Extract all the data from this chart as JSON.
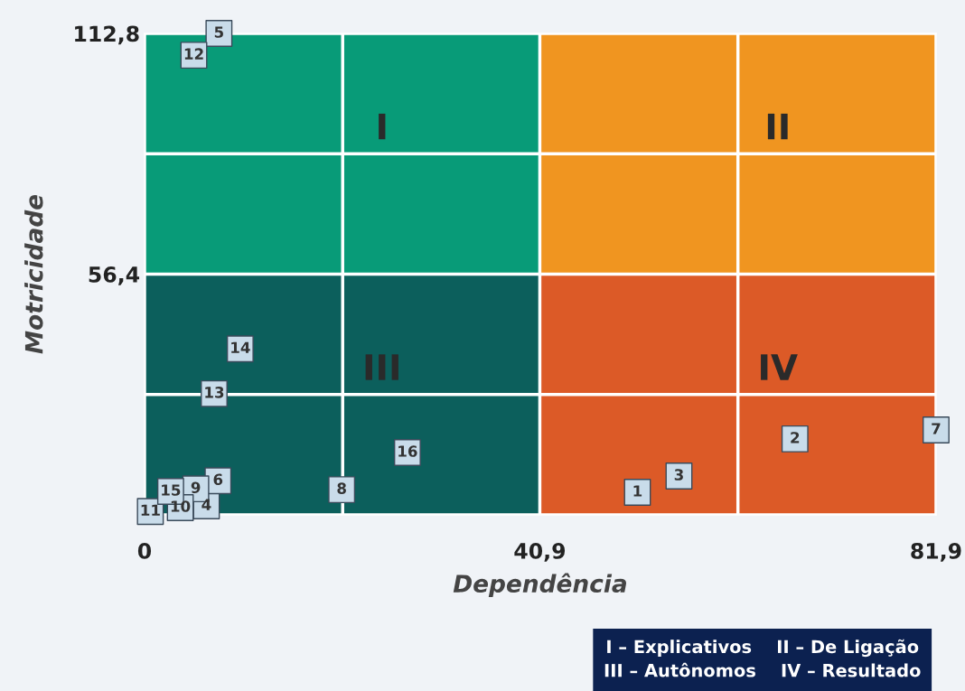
{
  "chart_data": {
    "type": "scatter",
    "xlabel": "Dependência",
    "ylabel": "Motricidade",
    "xlim": [
      0,
      81.9
    ],
    "ylim": [
      0,
      112.8
    ],
    "xticks": [
      {
        "value": 0,
        "label": "0"
      },
      {
        "value": 20.5,
        "label": null
      },
      {
        "value": 40.9,
        "label": "40,9"
      },
      {
        "value": 61.4,
        "label": null
      },
      {
        "value": 81.9,
        "label": "81,9"
      }
    ],
    "yticks": [
      {
        "value": 0,
        "label": null
      },
      {
        "value": 28.2,
        "label": null
      },
      {
        "value": 56.4,
        "label": "56,4"
      },
      {
        "value": 84.6,
        "label": null
      },
      {
        "value": 112.8,
        "label": "112,8"
      }
    ],
    "grid": true,
    "marker": "square",
    "series": [
      {
        "name": "1",
        "color": "#c9dcea",
        "x": [
          51.0
        ],
        "values": [
          5.3
        ]
      },
      {
        "name": "2",
        "color": "#c9dcea",
        "x": [
          67.3
        ],
        "values": [
          17.8
        ]
      },
      {
        "name": "3",
        "color": "#c9dcea",
        "x": [
          55.3
        ],
        "values": [
          9.1
        ]
      },
      {
        "name": "4",
        "color": "#c9dcea",
        "x": [
          6.4
        ],
        "values": [
          2.1
        ]
      },
      {
        "name": "5",
        "color": "#c9dcea",
        "x": [
          7.7
        ],
        "values": [
          112.8
        ]
      },
      {
        "name": "6",
        "color": "#c9dcea",
        "x": [
          7.6
        ],
        "values": [
          8.0
        ]
      },
      {
        "name": "7",
        "color": "#c9dcea",
        "x": [
          81.9
        ],
        "values": [
          19.9
        ]
      },
      {
        "name": "8",
        "color": "#c9dcea",
        "x": [
          20.4
        ],
        "values": [
          5.9
        ]
      },
      {
        "name": "9",
        "color": "#c9dcea",
        "x": [
          5.3
        ],
        "values": [
          6.1
        ]
      },
      {
        "name": "10",
        "color": "#c9dcea",
        "x": [
          3.7
        ],
        "values": [
          1.7
        ]
      },
      {
        "name": "11",
        "color": "#c9dcea",
        "x": [
          0.6
        ],
        "values": [
          0.8
        ]
      },
      {
        "name": "12",
        "color": "#c9dcea",
        "x": [
          5.1
        ],
        "values": [
          107.7
        ]
      },
      {
        "name": "13",
        "color": "#c9dcea",
        "x": [
          7.2
        ],
        "values": [
          28.4
        ]
      },
      {
        "name": "14",
        "color": "#c9dcea",
        "x": [
          9.9
        ],
        "values": [
          38.9
        ]
      },
      {
        "name": "15",
        "color": "#c9dcea",
        "x": [
          2.7
        ],
        "values": [
          5.5
        ]
      },
      {
        "name": "16",
        "color": "#c9dcea",
        "x": [
          27.2
        ],
        "values": [
          14.6
        ]
      }
    ],
    "annotations": [
      "I",
      "II",
      "III",
      "IV",
      "I – Explicativos    II – De Ligação",
      "III – Autônomos    IV – Resultado"
    ]
  }
}
